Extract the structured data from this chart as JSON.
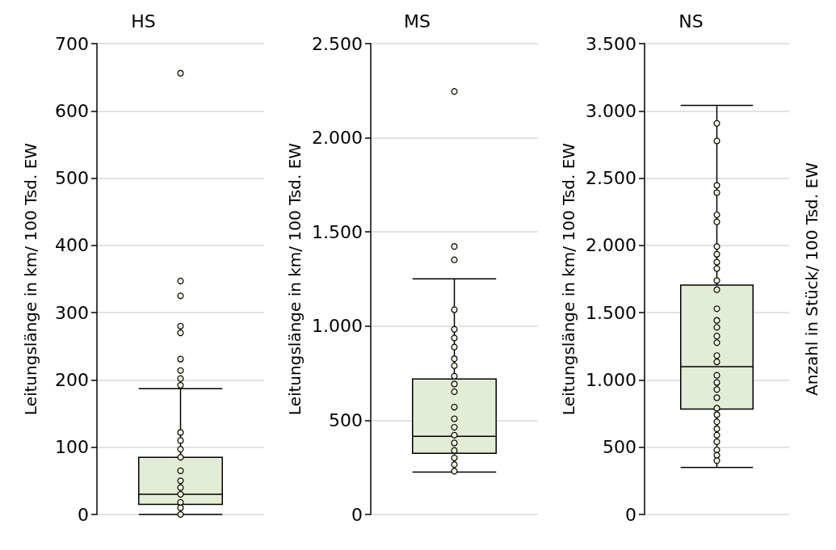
{
  "chart_data": [
    {
      "type": "box",
      "title": "HS",
      "ylabel": "Leitungslänge in km/ 100 Tsd. EW",
      "categories": [
        null
      ],
      "grid": "y",
      "tick_labels": "y",
      "marker": "circle",
      "ylim": [
        0,
        700
      ],
      "yticks": [
        0,
        100,
        200,
        300,
        400,
        500,
        600,
        700
      ],
      "series": [
        {
          "color": "#e3edd5",
          "boxes": [
            {
              "low": 0,
              "q1": 15,
              "median": 30,
              "q3": 85,
              "high": 187
            }
          ]
        },
        {
          "type": "scatter",
          "color": "#eef3dc",
          "x": [
            null,
            null,
            null,
            null,
            null,
            null,
            null,
            null,
            null,
            null,
            null,
            null,
            null,
            null,
            null,
            null,
            null,
            null,
            null,
            null
          ],
          "values": [
            656,
            347,
            325,
            280,
            270,
            231,
            214,
            202,
            192,
            122,
            110,
            97,
            85,
            65,
            50,
            40,
            30,
            18,
            10,
            0
          ]
        }
      ]
    },
    {
      "type": "box",
      "title": "MS",
      "ylabel": "Leitungslänge in km/ 100 Tsd. EW",
      "categories": [
        null
      ],
      "grid": "y",
      "tick_labels": "y",
      "marker": "circle",
      "ylim": [
        0,
        2500
      ],
      "yticks": [
        0,
        500,
        {
          "value": 1000,
          "label": "1.000"
        },
        {
          "value": 1500,
          "label": "1.500"
        },
        {
          "value": 2000,
          "label": "2.000"
        },
        {
          "value": 2500,
          "label": "2.500"
        }
      ],
      "series": [
        {
          "color": "#e3edd5",
          "boxes": [
            {
              "low": 225,
              "q1": 325,
              "median": 415,
              "q3": 719,
              "high": 1251
            }
          ]
        },
        {
          "type": "scatter",
          "color": "#eef3dc",
          "x": [
            null,
            null,
            null,
            null,
            null,
            null,
            null,
            null,
            null,
            null,
            null,
            null,
            null,
            null,
            null,
            null,
            null,
            null,
            null,
            null,
            null
          ],
          "values": [
            2246,
            1423,
            1352,
            1087,
            983,
            937,
            889,
            827,
            790,
            734,
            693,
            652,
            570,
            508,
            463,
            421,
            380,
            340,
            300,
            265,
            230
          ]
        }
      ]
    },
    {
      "type": "box",
      "title": "NS",
      "ylabel": "Leitungslänge in km/ 100 Tsd. EW",
      "y2label": "Anzahl in Stück/ 100 Tsd. EW",
      "categories": [
        null
      ],
      "grid": "y",
      "tick_labels": "y",
      "marker": "circle",
      "ylim": [
        0,
        3500
      ],
      "yticks": [
        0,
        500,
        {
          "value": 1000,
          "label": "1.000"
        },
        {
          "value": 1500,
          "label": "1.500"
        },
        {
          "value": 2000,
          "label": "2.000"
        },
        {
          "value": 2500,
          "label": "2.500"
        },
        {
          "value": 3000,
          "label": "3.000"
        },
        {
          "value": 3500,
          "label": "3.500"
        }
      ],
      "series": [
        {
          "color": "#e3edd5",
          "boxes": [
            {
              "low": 350,
              "q1": 784,
              "median": 1099,
              "q3": 1705,
              "high": 3040
            }
          ]
        },
        {
          "type": "scatter",
          "color": "#eef3dc",
          "x": [
            null,
            null,
            null,
            null,
            null,
            null,
            null,
            null,
            null,
            null,
            null,
            null,
            null,
            null,
            null,
            null,
            null,
            null,
            null,
            null,
            null,
            null,
            null,
            null,
            null,
            null,
            null,
            null,
            null,
            null,
            null,
            null
          ],
          "values": [
            2907,
            2777,
            2446,
            2392,
            2227,
            2175,
            1992,
            1934,
            1876,
            1828,
            1739,
            1671,
            1529,
            1443,
            1391,
            1326,
            1277,
            1181,
            1134,
            1034,
            981,
            929,
            868,
            790,
            742,
            689,
            637,
            590,
            540,
            480,
            440,
            400
          ]
        }
      ]
    }
  ]
}
